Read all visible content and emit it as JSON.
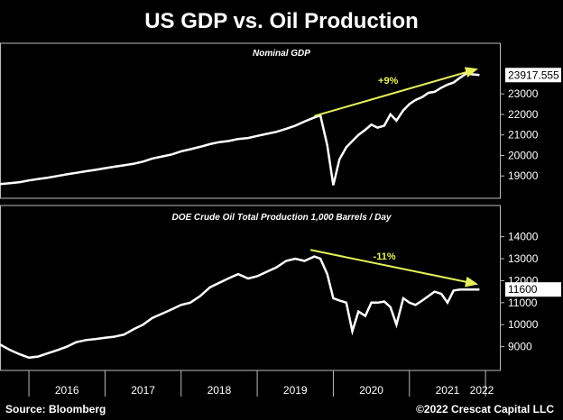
{
  "title": "US GDP vs. Oil Production",
  "footer": {
    "source": "Source: Bloomberg",
    "copyright": "©2022 Crescat Capital LLC"
  },
  "colors": {
    "background": "#000000",
    "line": "#ffffff",
    "arrow": "#e6f05a",
    "annotation": "#e6f05a"
  },
  "chart_data": [
    {
      "type": "line",
      "title": "Nominal GDP",
      "ylim": [
        18000,
        24500
      ],
      "yticks": [
        19000,
        20000,
        21000,
        22000,
        23000
      ],
      "last_value_label": "23917.555",
      "annotation": {
        "text": "+9%",
        "from": [
          2019.75,
          21920
        ],
        "to": [
          2021.88,
          24200
        ]
      },
      "series": [
        {
          "x": [
            2015.62,
            2015.75,
            2015.88,
            2016.0,
            2016.12,
            2016.25,
            2016.38,
            2016.5,
            2016.62,
            2016.75,
            2016.88,
            2017.0,
            2017.12,
            2017.25,
            2017.38,
            2017.5,
            2017.62,
            2017.75,
            2017.88,
            2018.0,
            2018.12,
            2018.25,
            2018.38,
            2018.5,
            2018.62,
            2018.75,
            2018.88,
            2019.0,
            2019.12,
            2019.25,
            2019.38,
            2019.5,
            2019.62,
            2019.75,
            2019.83,
            2019.92,
            2020.0,
            2020.08,
            2020.17,
            2020.25,
            2020.33,
            2020.42,
            2020.5,
            2020.58,
            2020.67,
            2020.75,
            2020.83,
            2020.92,
            2021.0,
            2021.08,
            2021.17,
            2021.25,
            2021.33,
            2021.42,
            2021.5,
            2021.58,
            2021.67,
            2021.75,
            2021.83,
            2021.92
          ],
          "y": [
            18600,
            18650,
            18700,
            18780,
            18850,
            18920,
            19000,
            19080,
            19150,
            19230,
            19300,
            19380,
            19450,
            19520,
            19600,
            19700,
            19850,
            19950,
            20050,
            20200,
            20300,
            20420,
            20550,
            20650,
            20700,
            20800,
            20850,
            20950,
            21050,
            21150,
            21300,
            21450,
            21650,
            21850,
            21950,
            20500,
            18550,
            19800,
            20400,
            20700,
            21000,
            21250,
            21500,
            21350,
            21450,
            22000,
            21700,
            22200,
            22500,
            22700,
            22850,
            23050,
            23100,
            23300,
            23450,
            23550,
            23800,
            24000,
            23950,
            23917.555
          ]
        }
      ]
    },
    {
      "type": "line",
      "title": "DOE Crude Oil Total Production 1,000 Barrels / Day",
      "ylim": [
        8000,
        14600
      ],
      "yticks": [
        9000,
        10000,
        11000,
        12000,
        13000,
        14000
      ],
      "last_value_label": "11600",
      "annotation": {
        "text": "-11%",
        "from": [
          2019.7,
          13400
        ],
        "to": [
          2021.88,
          11850
        ]
      },
      "xticks": [
        "2016",
        "2017",
        "2018",
        "2019",
        "2020",
        "2021",
        "2022"
      ],
      "series": [
        {
          "x": [
            2015.62,
            2015.75,
            2015.88,
            2016.0,
            2016.12,
            2016.25,
            2016.38,
            2016.5,
            2016.62,
            2016.75,
            2016.88,
            2017.0,
            2017.12,
            2017.25,
            2017.38,
            2017.5,
            2017.62,
            2017.75,
            2017.88,
            2018.0,
            2018.12,
            2018.25,
            2018.38,
            2018.5,
            2018.62,
            2018.75,
            2018.88,
            2019.0,
            2019.12,
            2019.25,
            2019.38,
            2019.5,
            2019.62,
            2019.75,
            2019.83,
            2019.92,
            2020.0,
            2020.08,
            2020.17,
            2020.25,
            2020.33,
            2020.42,
            2020.5,
            2020.58,
            2020.67,
            2020.75,
            2020.83,
            2020.92,
            2021.0,
            2021.08,
            2021.17,
            2021.25,
            2021.33,
            2021.42,
            2021.5,
            2021.58,
            2021.67,
            2021.75,
            2021.83,
            2021.92
          ],
          "y": [
            9100,
            8850,
            8650,
            8500,
            8550,
            8700,
            8850,
            9000,
            9200,
            9300,
            9350,
            9400,
            9450,
            9550,
            9800,
            10000,
            10300,
            10500,
            10700,
            10900,
            11000,
            11300,
            11700,
            11900,
            12100,
            12300,
            12100,
            12200,
            12400,
            12600,
            12900,
            13000,
            12900,
            13100,
            13000,
            12300,
            11200,
            11100,
            11000,
            9700,
            10600,
            10400,
            11000,
            11000,
            11050,
            10800,
            10000,
            11200,
            11000,
            10900,
            11100,
            11300,
            11500,
            11400,
            11000,
            11550,
            11600,
            11600,
            11600,
            11600
          ]
        }
      ]
    }
  ]
}
